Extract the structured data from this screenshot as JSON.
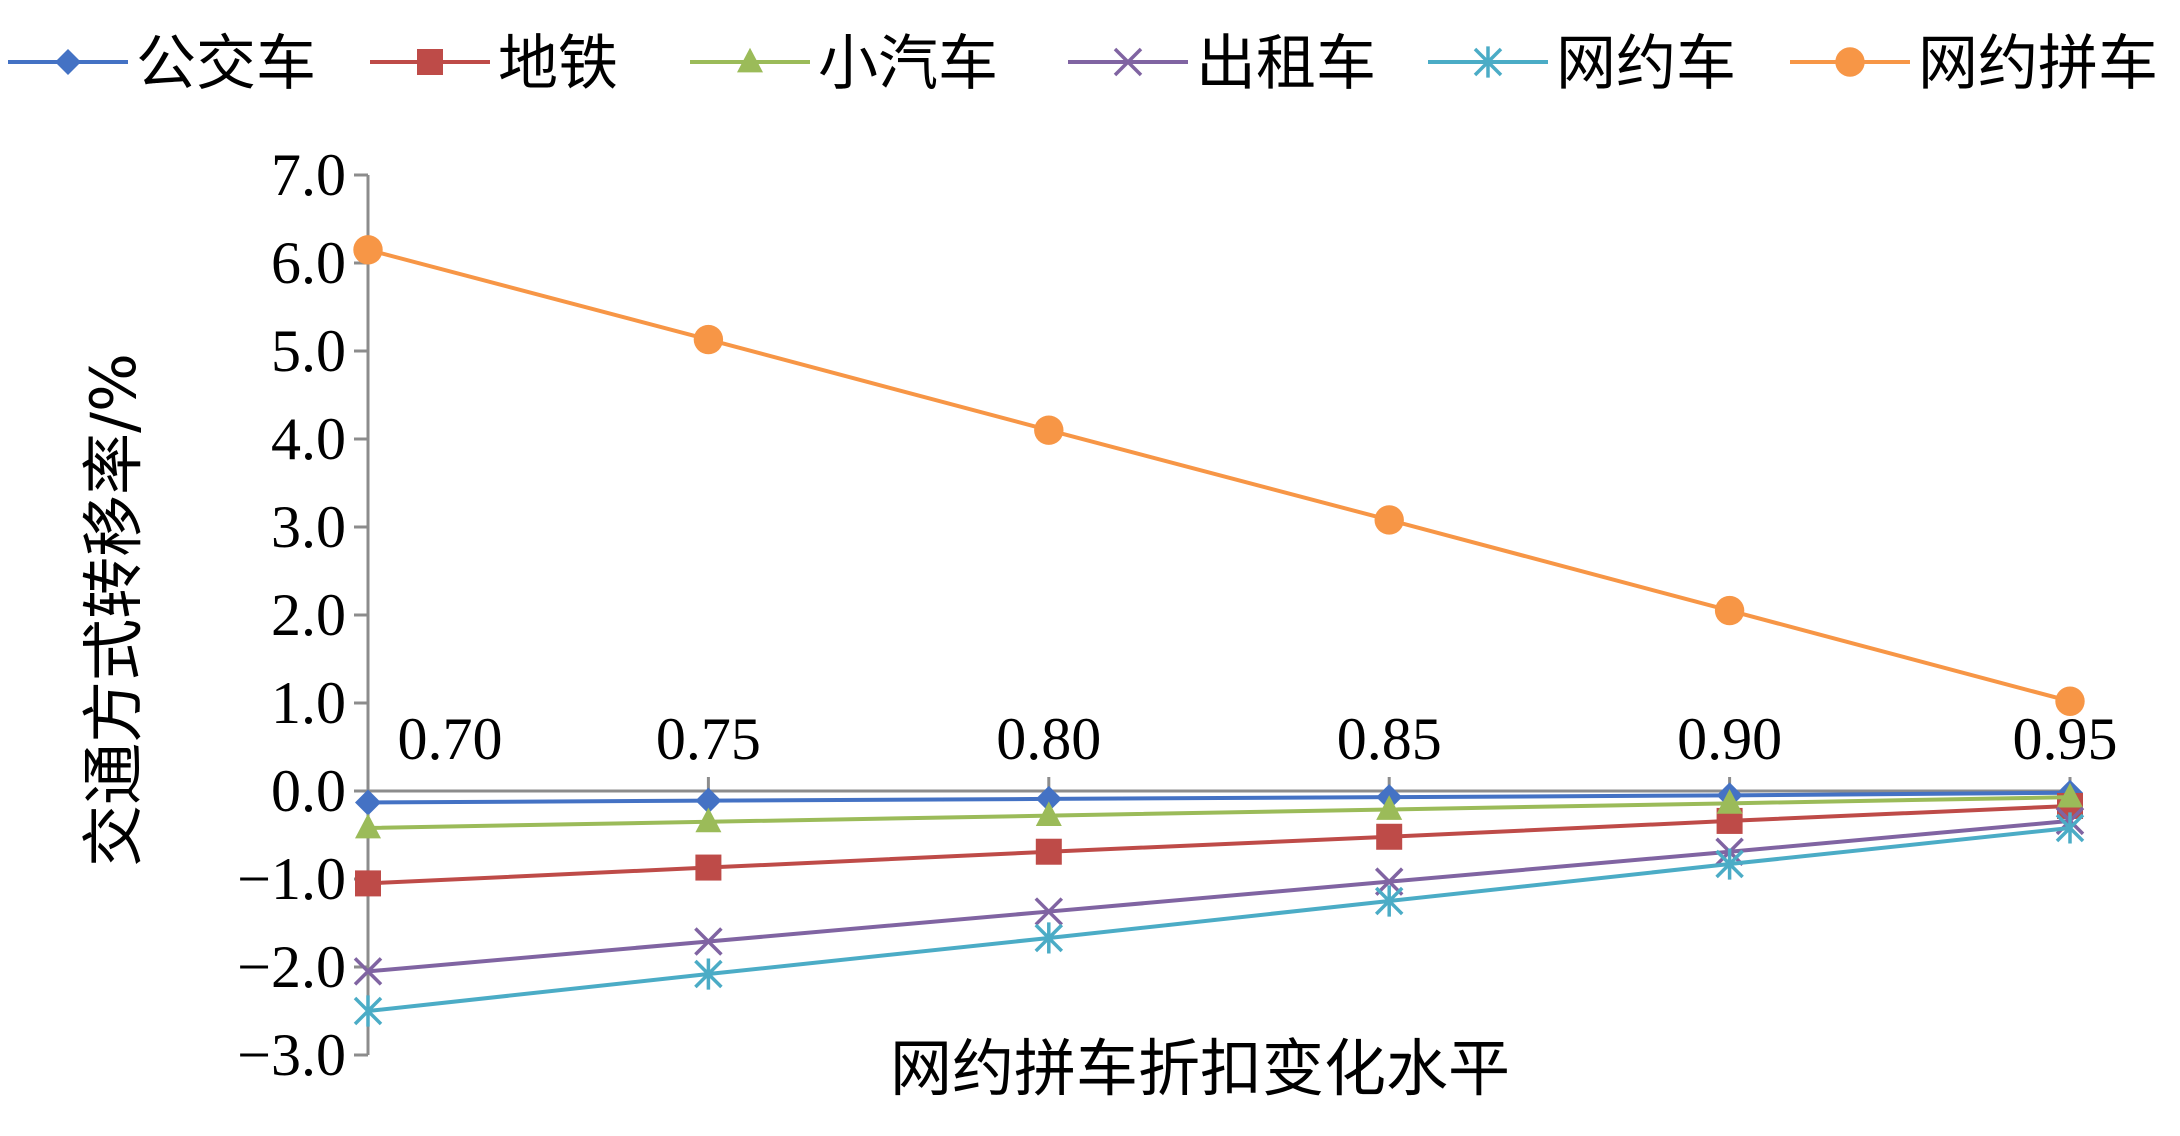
{
  "chart_data": {
    "type": "line",
    "title": "",
    "xlabel": "网约拼车折扣变化水平",
    "ylabel": "交通方式转移率/%",
    "x": [
      0.7,
      0.75,
      0.8,
      0.85,
      0.9,
      0.95
    ],
    "x_tick_labels": [
      "0.70",
      "0.75",
      "0.80",
      "0.85",
      "0.90",
      "0.95"
    ],
    "ylim": [
      -3.0,
      7.0
    ],
    "y_ticks": [
      7.0,
      6.0,
      5.0,
      4.0,
      3.0,
      2.0,
      1.0,
      0.0,
      -1.0,
      -2.0,
      -3.0
    ],
    "y_tick_labels": [
      "7.0",
      "6.0",
      "5.0",
      "4.0",
      "3.0",
      "2.0",
      "1.0",
      "0.0",
      "−1.0",
      "−2.0",
      "−3.0"
    ],
    "grid": false,
    "legend_position": "top",
    "series": [
      {
        "name": "公交车",
        "color": "#4472C4",
        "marker": "diamond",
        "values": [
          -0.13,
          -0.11,
          -0.09,
          -0.07,
          -0.05,
          -0.02
        ]
      },
      {
        "name": "地铁",
        "color": "#BE4B48",
        "marker": "square",
        "values": [
          -1.05,
          -0.87,
          -0.69,
          -0.52,
          -0.34,
          -0.17
        ]
      },
      {
        "name": "小汽车",
        "color": "#9BBB59",
        "marker": "triangle",
        "values": [
          -0.42,
          -0.35,
          -0.28,
          -0.21,
          -0.14,
          -0.07
        ]
      },
      {
        "name": "出租车",
        "color": "#8064A2",
        "marker": "x",
        "values": [
          -2.05,
          -1.71,
          -1.37,
          -1.03,
          -0.69,
          -0.34
        ]
      },
      {
        "name": "网约车",
        "color": "#4BACC6",
        "marker": "asterisk",
        "values": [
          -2.5,
          -2.08,
          -1.67,
          -1.25,
          -0.83,
          -0.42
        ]
      },
      {
        "name": "网约拼车",
        "color": "#F79646",
        "marker": "circle",
        "values": [
          6.15,
          5.13,
          4.1,
          3.08,
          2.05,
          1.02
        ]
      }
    ]
  }
}
